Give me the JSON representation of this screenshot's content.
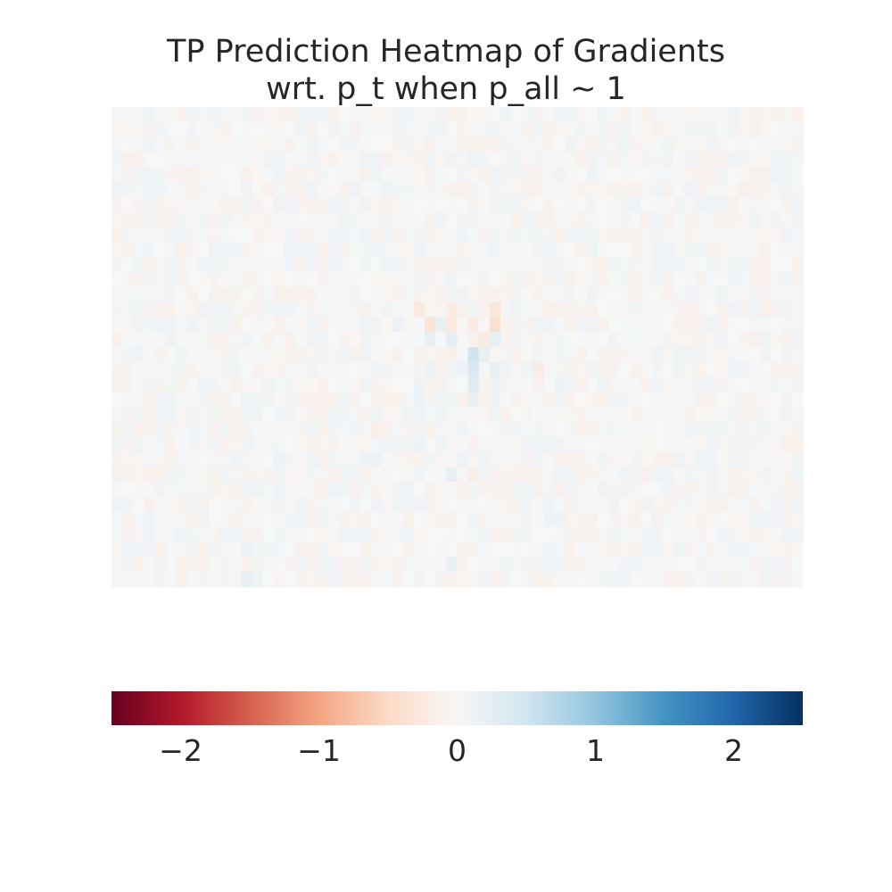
{
  "chart_data": {
    "type": "heatmap",
    "title": "TP Prediction Heatmap of Gradients",
    "subtitle": "wrt. p_t when p_all ~ 1",
    "xlabel": "",
    "ylabel": "",
    "axes_visible": false,
    "grid": false,
    "rows": 32,
    "cols": 64,
    "background_value": 0.0,
    "noise_amplitude": 0.12,
    "notable_cells": [
      {
        "row": 13,
        "col": 28,
        "value": -0.25
      },
      {
        "row": 13,
        "col": 31,
        "value": -0.2
      },
      {
        "row": 13,
        "col": 35,
        "value": -0.3
      },
      {
        "row": 14,
        "col": 26,
        "value": 0.15
      },
      {
        "row": 14,
        "col": 29,
        "value": -0.35
      },
      {
        "row": 14,
        "col": 30,
        "value": 0.2
      },
      {
        "row": 14,
        "col": 31,
        "value": -0.25
      },
      {
        "row": 14,
        "col": 33,
        "value": -0.2
      },
      {
        "row": 14,
        "col": 35,
        "value": -0.4
      },
      {
        "row": 15,
        "col": 29,
        "value": 0.2
      },
      {
        "row": 15,
        "col": 31,
        "value": 0.25
      },
      {
        "row": 15,
        "col": 34,
        "value": -0.2
      },
      {
        "row": 15,
        "col": 35,
        "value": 0.2
      },
      {
        "row": 16,
        "col": 33,
        "value": 0.5
      },
      {
        "row": 16,
        "col": 34,
        "value": 0.2
      },
      {
        "row": 16,
        "col": 31,
        "value": -0.15
      },
      {
        "row": 17,
        "col": 33,
        "value": 0.4
      },
      {
        "row": 17,
        "col": 32,
        "value": 0.15
      },
      {
        "row": 17,
        "col": 35,
        "value": 0.2
      },
      {
        "row": 17,
        "col": 29,
        "value": 0.15
      },
      {
        "row": 17,
        "col": 39,
        "value": -0.2
      },
      {
        "row": 18,
        "col": 33,
        "value": 0.3
      },
      {
        "row": 18,
        "col": 35,
        "value": 0.15
      },
      {
        "row": 18,
        "col": 28,
        "value": 0.15
      },
      {
        "row": 18,
        "col": 41,
        "value": 0.15
      },
      {
        "row": 19,
        "col": 33,
        "value": 0.2
      },
      {
        "row": 19,
        "col": 35,
        "value": 0.15
      },
      {
        "row": 19,
        "col": 28,
        "value": 0.15
      },
      {
        "row": 21,
        "col": 24,
        "value": -0.15
      },
      {
        "row": 22,
        "col": 28,
        "value": 0.15
      },
      {
        "row": 23,
        "col": 15,
        "value": 0.15
      },
      {
        "row": 23,
        "col": 23,
        "value": 0.15
      },
      {
        "row": 23,
        "col": 24,
        "value": 0.15
      },
      {
        "row": 24,
        "col": 31,
        "value": 0.2
      },
      {
        "row": 24,
        "col": 33,
        "value": -0.15
      },
      {
        "row": 27,
        "col": 40,
        "value": 0.15
      },
      {
        "row": 27,
        "col": 41,
        "value": 0.15
      },
      {
        "row": 29,
        "col": 12,
        "value": 0.15
      },
      {
        "row": 30,
        "col": 31,
        "value": 0.2
      },
      {
        "row": 31,
        "col": 12,
        "value": 0.2
      },
      {
        "row": 31,
        "col": 13,
        "value": 0.15
      }
    ],
    "colorbar": {
      "colormap": "RdBu",
      "orientation": "horizontal",
      "vmin": -2.5,
      "vmax": 2.5,
      "ticks": [
        -2,
        -1,
        0,
        1,
        2
      ],
      "tick_labels": [
        "−2",
        "−1",
        "0",
        "1",
        "2"
      ],
      "stops": [
        "#67001f",
        "#b2182b",
        "#d6604d",
        "#f4a582",
        "#fddbc7",
        "#f7f7f7",
        "#d1e5f0",
        "#92c5de",
        "#4393c3",
        "#2166ac",
        "#053061"
      ]
    }
  }
}
